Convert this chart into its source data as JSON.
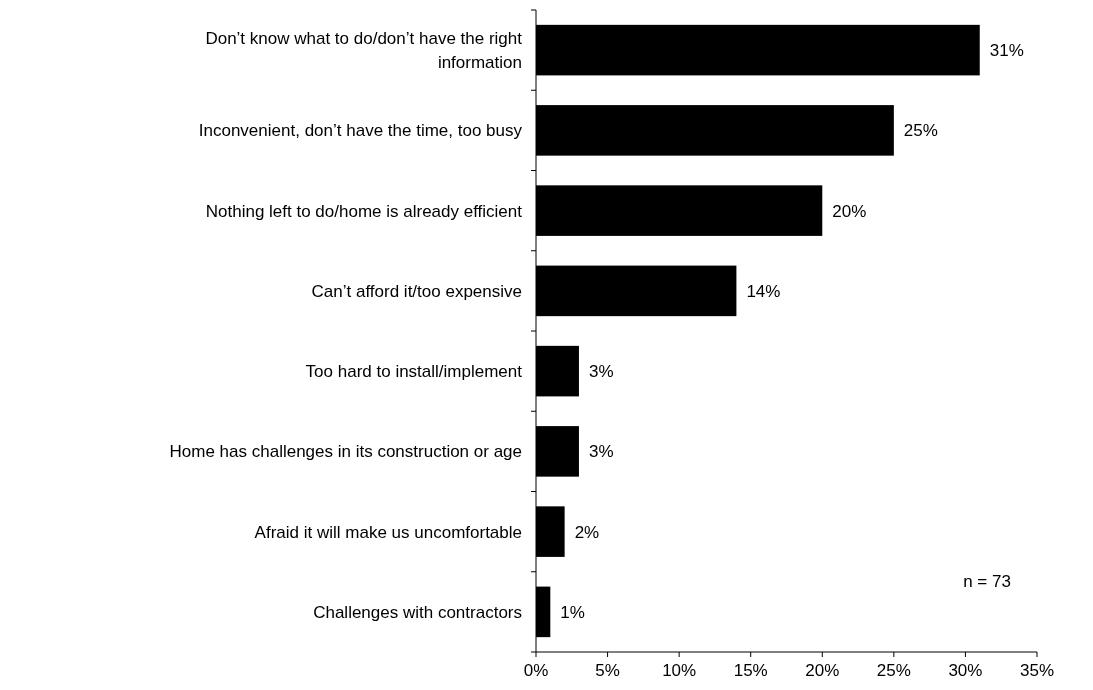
{
  "chart_data": {
    "type": "bar",
    "orientation": "horizontal",
    "categories": [
      "Don’t know what to do/don’t have the right information",
      "Inconvenient, don’t have the time, too busy",
      "Nothing left to do/home is already efficient",
      "Can’t afford it/too expensive",
      "Too hard to install/implement",
      "Home has challenges in its construction or age",
      "Afraid it will make us uncomfortable",
      "Challenges with contractors"
    ],
    "values": [
      31,
      25,
      20,
      14,
      3,
      3,
      2,
      1
    ],
    "color": "#000000",
    "value_labels": [
      "31%",
      "25%",
      "20%",
      "14%",
      "3%",
      "3%",
      "2%",
      "1%"
    ],
    "xlim": [
      0,
      35
    ],
    "xticks": [
      {
        "value": 0,
        "label": "0%"
      },
      {
        "value": 5,
        "label": "5%"
      },
      {
        "value": 10,
        "label": "10%"
      },
      {
        "value": 15,
        "label": "15%"
      },
      {
        "value": 20,
        "label": "20%"
      },
      {
        "value": 25,
        "label": "25%"
      },
      {
        "value": 30,
        "label": "30%"
      },
      {
        "value": 35,
        "label": "35%"
      }
    ],
    "grid": false,
    "annotations": [
      "n = 73"
    ]
  }
}
